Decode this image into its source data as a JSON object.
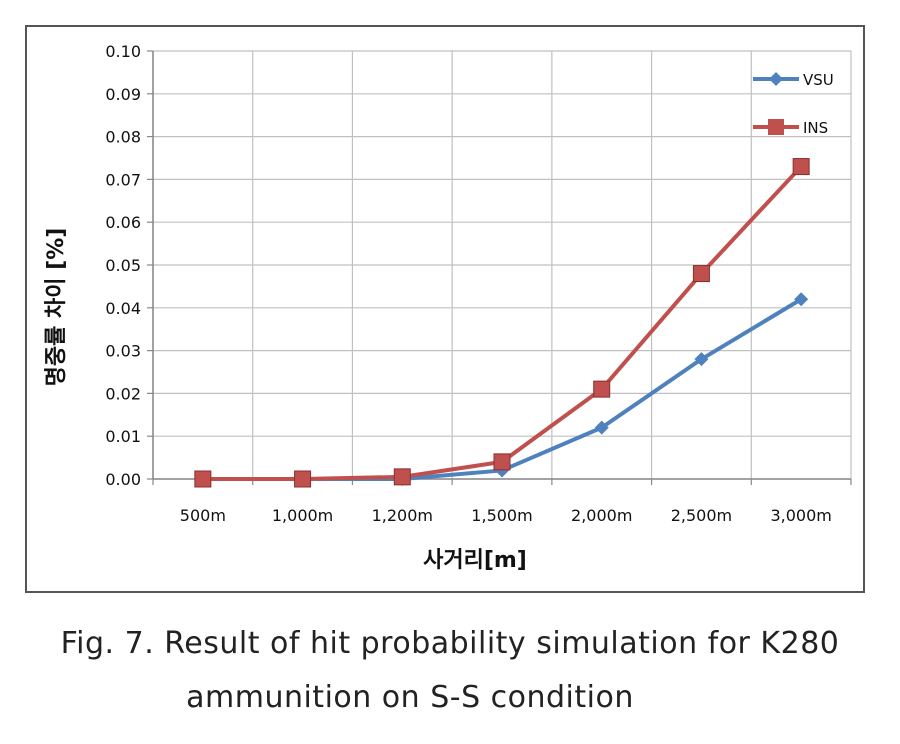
{
  "chart_data": {
    "type": "line",
    "title": "",
    "xlabel": "사거리[m]",
    "ylabel": "명중률 차이 [%]",
    "categories": [
      "500m",
      "1,000m",
      "1,200m",
      "1,500m",
      "2,000m",
      "2,500m",
      "3,000m"
    ],
    "ylim": [
      0,
      0.1
    ],
    "yticks": [
      "0.00",
      "0.01",
      "0.02",
      "0.03",
      "0.04",
      "0.05",
      "0.06",
      "0.07",
      "0.08",
      "0.09",
      "0.10"
    ],
    "grid": true,
    "legend_position": "top-right",
    "series": [
      {
        "name": "VSU",
        "color": "#4F81BD",
        "marker": "diamond",
        "values": [
          0.0,
          0.0,
          0.0,
          0.002,
          0.012,
          0.028,
          0.042
        ]
      },
      {
        "name": "INS",
        "color": "#C0504D",
        "marker": "square",
        "values": [
          0.0,
          0.0,
          0.0005,
          0.004,
          0.021,
          0.048,
          0.073
        ]
      }
    ]
  },
  "caption": {
    "line1": "Fig. 7. Result of hit probability simulation for K280",
    "line2": "ammunition on S-S condition"
  }
}
